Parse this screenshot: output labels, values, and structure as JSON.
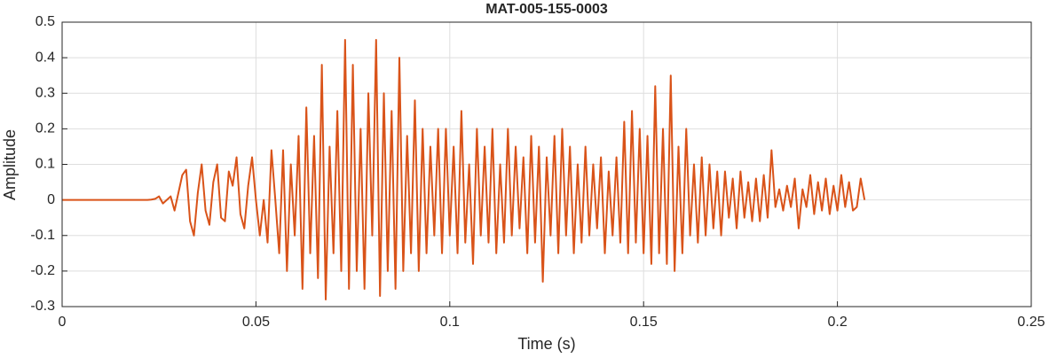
{
  "chart_data": {
    "type": "line",
    "title": "MAT-005-155-0003",
    "xlabel": "Time (s)",
    "ylabel": "Amplitude",
    "xlim": [
      0,
      0.25
    ],
    "ylim": [
      -0.3,
      0.5
    ],
    "xticks": [
      0,
      0.05,
      0.1,
      0.15,
      0.2,
      0.25
    ],
    "yticks": [
      -0.3,
      -0.2,
      -0.1,
      0,
      0.1,
      0.2,
      0.3,
      0.4,
      0.5
    ],
    "grid": true,
    "x": [
      0,
      0.022,
      0.023,
      0.024,
      0.025,
      0.026,
      0.027,
      0.028,
      0.029,
      0.03,
      0.031,
      0.032,
      0.033,
      0.034,
      0.035,
      0.036,
      0.037,
      0.038,
      0.039,
      0.04,
      0.041,
      0.042,
      0.043,
      0.044,
      0.045,
      0.046,
      0.047,
      0.048,
      0.049,
      0.05,
      0.051,
      0.052,
      0.053,
      0.054,
      0.055,
      0.056,
      0.057,
      0.058,
      0.059,
      0.06,
      0.061,
      0.062,
      0.063,
      0.064,
      0.065,
      0.066,
      0.067,
      0.068,
      0.069,
      0.07,
      0.071,
      0.072,
      0.073,
      0.074,
      0.075,
      0.076,
      0.077,
      0.078,
      0.079,
      0.08,
      0.081,
      0.082,
      0.083,
      0.084,
      0.085,
      0.086,
      0.087,
      0.088,
      0.089,
      0.09,
      0.091,
      0.092,
      0.093,
      0.094,
      0.095,
      0.096,
      0.097,
      0.098,
      0.099,
      0.1,
      0.101,
      0.102,
      0.103,
      0.104,
      0.105,
      0.106,
      0.107,
      0.108,
      0.109,
      0.11,
      0.111,
      0.112,
      0.113,
      0.114,
      0.115,
      0.116,
      0.117,
      0.118,
      0.119,
      0.12,
      0.121,
      0.122,
      0.123,
      0.124,
      0.125,
      0.126,
      0.127,
      0.128,
      0.129,
      0.13,
      0.131,
      0.132,
      0.133,
      0.134,
      0.135,
      0.136,
      0.137,
      0.138,
      0.139,
      0.14,
      0.141,
      0.142,
      0.143,
      0.144,
      0.145,
      0.146,
      0.147,
      0.148,
      0.149,
      0.15,
      0.151,
      0.152,
      0.153,
      0.154,
      0.155,
      0.156,
      0.157,
      0.158,
      0.159,
      0.16,
      0.161,
      0.162,
      0.163,
      0.164,
      0.165,
      0.166,
      0.167,
      0.168,
      0.169,
      0.17,
      0.171,
      0.172,
      0.173,
      0.174,
      0.175,
      0.176,
      0.177,
      0.178,
      0.179,
      0.18,
      0.181,
      0.182,
      0.183,
      0.184,
      0.185,
      0.186,
      0.187,
      0.188,
      0.189,
      0.19,
      0.191,
      0.192,
      0.193,
      0.194,
      0.195,
      0.196,
      0.197,
      0.198,
      0.199,
      0.2,
      0.201,
      0.202,
      0.203,
      0.204,
      0.205,
      0.206,
      0.207
    ],
    "series": [
      {
        "color": "#d95319",
        "values": [
          0,
          0,
          0.001,
          0.003,
          0.01,
          -0.01,
          0,
          0.01,
          -0.03,
          0.02,
          0.07,
          0.085,
          -0.06,
          -0.1,
          0.02,
          0.1,
          -0.03,
          -0.07,
          0.05,
          0.1,
          -0.05,
          -0.06,
          0.08,
          0.04,
          0.12,
          -0.04,
          -0.08,
          0.04,
          0.12,
          0,
          -0.1,
          0,
          -0.12,
          0.14,
          0,
          -0.15,
          0.14,
          -0.2,
          0.1,
          -0.1,
          0.18,
          -0.25,
          0.26,
          -0.15,
          0.18,
          -0.22,
          0.38,
          -0.28,
          0.15,
          -0.15,
          0.25,
          -0.2,
          0.45,
          -0.25,
          0.38,
          -0.2,
          0.2,
          -0.25,
          0.3,
          -0.1,
          0.45,
          -0.27,
          0.3,
          -0.2,
          0.25,
          -0.25,
          0.4,
          -0.2,
          0.18,
          -0.15,
          0.28,
          -0.2,
          0.2,
          -0.15,
          0.15,
          -0.1,
          0.2,
          -0.15,
          0.2,
          -0.1,
          0.15,
          -0.15,
          0.25,
          -0.12,
          0.1,
          -0.18,
          0.2,
          -0.1,
          0.15,
          -0.12,
          0.2,
          -0.15,
          0.1,
          -0.12,
          0.2,
          -0.1,
          0.15,
          -0.08,
          0.12,
          -0.15,
          0.18,
          -0.12,
          0.15,
          -0.23,
          0.12,
          -0.1,
          0.18,
          -0.15,
          0.2,
          -0.1,
          0.15,
          -0.15,
          0.1,
          -0.12,
          0.15,
          -0.1,
          0.1,
          -0.08,
          0.12,
          -0.15,
          0.08,
          -0.1,
          0.12,
          -0.12,
          0.22,
          -0.15,
          0.25,
          -0.12,
          0.2,
          -0.15,
          0.18,
          -0.18,
          0.32,
          -0.15,
          0.2,
          -0.18,
          0.35,
          -0.2,
          0.15,
          -0.15,
          0.2,
          -0.1,
          0.1,
          -0.12,
          0.12,
          -0.1,
          0.1,
          -0.08,
          0.08,
          -0.1,
          0.08,
          -0.05,
          0.06,
          -0.08,
          0.08,
          -0.05,
          0.05,
          -0.06,
          0.06,
          -0.06,
          0.07,
          -0.05,
          0.14,
          -0.02,
          0.03,
          -0.03,
          0.04,
          -0.02,
          0.06,
          -0.08,
          0.03,
          -0.02,
          0.07,
          -0.04,
          0.05,
          -0.03,
          0.06,
          -0.04,
          0.04,
          -0.03,
          0.07,
          -0.02,
          0.05,
          -0.03,
          -0.02,
          0.06,
          0
        ]
      }
    ]
  }
}
